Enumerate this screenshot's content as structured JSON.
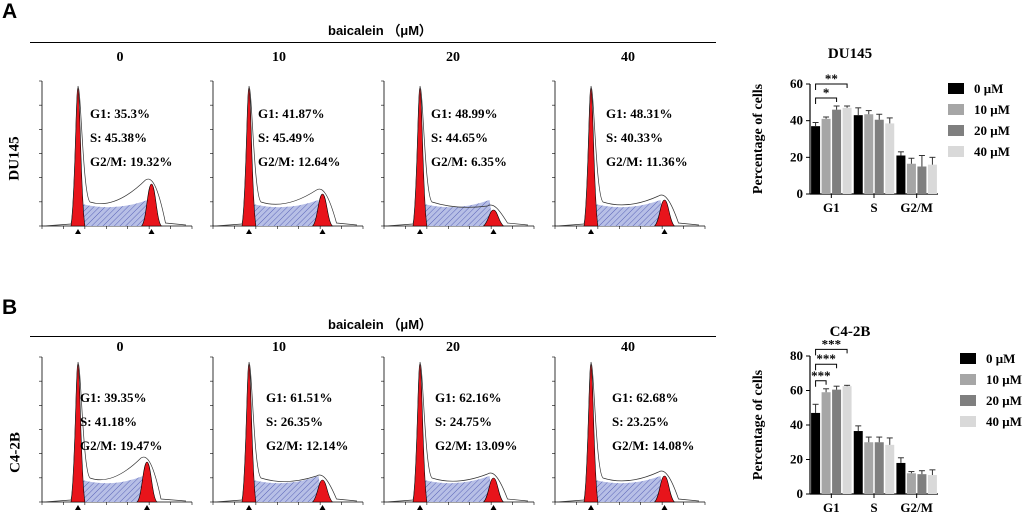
{
  "panel_a": {
    "letter": "A",
    "condition_title": "baicalein （μM）",
    "row_label": "DU145",
    "doses": [
      "0",
      "10",
      "20",
      "40"
    ],
    "histograms": [
      {
        "g1": "G1: 35.3%",
        "s": "S: 45.38%",
        "g2m": "G2/M: 19.32%"
      },
      {
        "g1": "G1: 41.87%",
        "s": "S: 45.49%",
        "g2m": "G2/M: 12.64%"
      },
      {
        "g1": "G1: 48.99%",
        "s": "S: 44.65%",
        "g2m": "G2/M: 6.35%"
      },
      {
        "g1": "G1: 48.31%",
        "s": "S: 40.33%",
        "g2m": "G2/M: 11.36%"
      }
    ]
  },
  "panel_b": {
    "letter": "B",
    "condition_title": "baicalein （μM）",
    "row_label": "C4-2B",
    "doses": [
      "0",
      "10",
      "20",
      "40"
    ],
    "histograms": [
      {
        "g1": "G1: 39.35%",
        "s": "S: 41.18%",
        "g2m": "G2/M: 19.47%"
      },
      {
        "g1": "G1: 61.51%",
        "s": "S: 26.35%",
        "g2m": "G2/M: 12.14%"
      },
      {
        "g1": "G1: 62.16%",
        "s": "S: 24.75%",
        "g2m": "G2/M: 13.09%"
      },
      {
        "g1": "G1: 62.68%",
        "s": "S: 23.25%",
        "g2m": "G2/M: 14.08%"
      }
    ]
  },
  "colors": {
    "peak_fill": "#e8141b",
    "s_phase_fill": "#b7bfe6",
    "s_phase_hatch": "#5a64b8",
    "dose_0": "#000000",
    "dose_10": "#a6a6a6",
    "dose_20": "#7f7f7f",
    "dose_40": "#d9d9d9"
  },
  "chart_data": [
    {
      "type": "bar",
      "title": "DU145",
      "ylabel": "Percentage of cells",
      "xlabel": "",
      "categories": [
        "G1",
        "S",
        "G2/M"
      ],
      "ylim": [
        0,
        60
      ],
      "yticks": [
        "0",
        "20",
        "40",
        "60"
      ],
      "legend_position": "right",
      "series": [
        {
          "name": "0 μM",
          "values": [
            37,
            43,
            21
          ],
          "errors": [
            2,
            4,
            2
          ]
        },
        {
          "name": "10 μM",
          "values": [
            41,
            43.5,
            16.5
          ],
          "errors": [
            1,
            2,
            3
          ]
        },
        {
          "name": "20 μM",
          "values": [
            46,
            40.5,
            15
          ],
          "errors": [
            2,
            3,
            6
          ]
        },
        {
          "name": "40 μM",
          "values": [
            47,
            38.5,
            16
          ],
          "errors": [
            1,
            3,
            4
          ]
        }
      ],
      "significance": [
        {
          "label": "*",
          "from_series": 0,
          "to_series": 2,
          "category": 0
        },
        {
          "label": "**",
          "from_series": 0,
          "to_series": 3,
          "category": 0
        }
      ]
    },
    {
      "type": "bar",
      "title": "C4-2B",
      "ylabel": "Percentage of cells",
      "xlabel": "",
      "categories": [
        "G1",
        "S",
        "G2/M"
      ],
      "ylim": [
        0,
        80
      ],
      "yticks": [
        "0",
        "20",
        "40",
        "60",
        "80"
      ],
      "legend_position": "right",
      "series": [
        {
          "name": "0 μM",
          "values": [
            47,
            36.5,
            18
          ],
          "errors": [
            5,
            3,
            3
          ]
        },
        {
          "name": "10 μM",
          "values": [
            59,
            30,
            12
          ],
          "errors": [
            2,
            3,
            1
          ]
        },
        {
          "name": "20 μM",
          "values": [
            60.5,
            30,
            11.5
          ],
          "errors": [
            2,
            3,
            2
          ]
        },
        {
          "name": "40 μM",
          "values": [
            62.5,
            28.5,
            11
          ],
          "errors": [
            0.5,
            4,
            3
          ]
        }
      ],
      "significance": [
        {
          "label": "***",
          "from_series": 0,
          "to_series": 1,
          "category": 0
        },
        {
          "label": "***",
          "from_series": 0,
          "to_series": 2,
          "category": 0
        },
        {
          "label": "***",
          "from_series": 0,
          "to_series": 3,
          "category": 0
        }
      ]
    }
  ]
}
